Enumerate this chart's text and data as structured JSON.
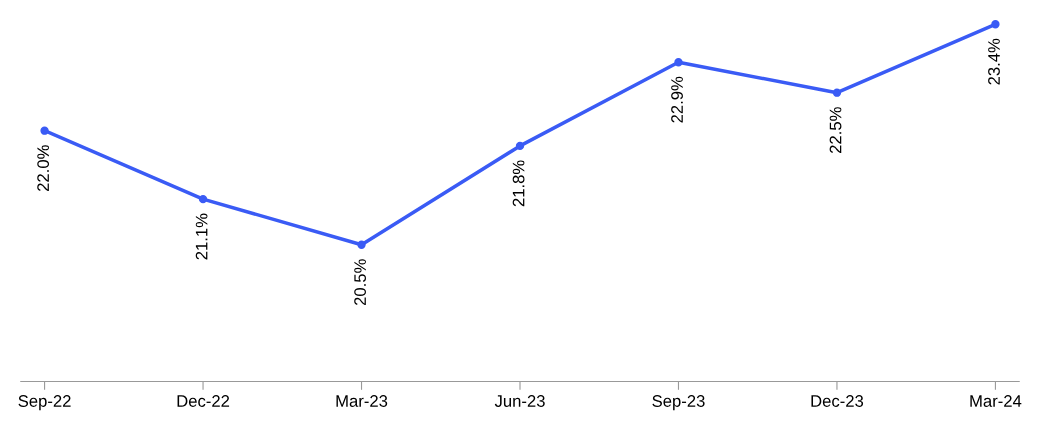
{
  "chart_data": {
    "type": "line",
    "categories": [
      "Sep-22",
      "Dec-22",
      "Mar-23",
      "Jun-23",
      "Sep-23",
      "Dec-23",
      "Mar-24"
    ],
    "series": [
      {
        "color": "#3a5bf5",
        "values": [
          22.0,
          21.1,
          20.5,
          21.8,
          22.9,
          22.5,
          23.4
        ],
        "value_labels": [
          "22.0%",
          "21.1%",
          "20.5%",
          "21.8%",
          "22.9%",
          "22.5%",
          "23.4%"
        ]
      }
    ],
    "marker": "circle",
    "line_style": "solid",
    "grid": false
  }
}
